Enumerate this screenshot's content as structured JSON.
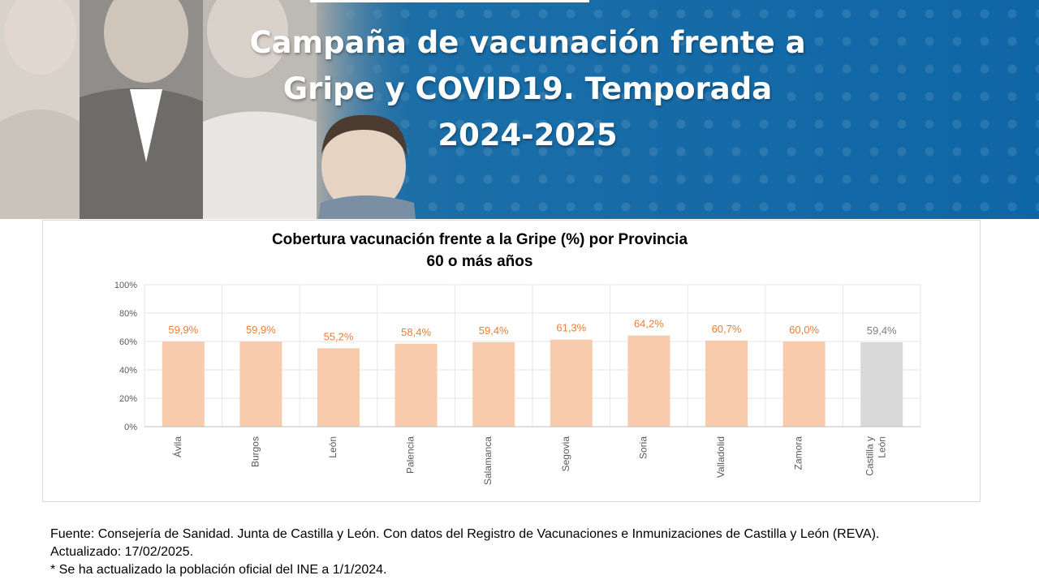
{
  "banner": {
    "title_line1": "Campaña de vacunación frente a",
    "title_line2": "Gripe y COVID19. Temporada",
    "title_line3": "2024-2025"
  },
  "chart_data": {
    "type": "bar",
    "title_line1": "Cobertura vacunación frente a la Gripe (%) por Provincia",
    "title_line2": "60 o más años",
    "categories": [
      "Ávila",
      "Burgos",
      "León",
      "Palencia",
      "Salamanca",
      "Segovia",
      "Soria",
      "Valladolid",
      "Zamora",
      "Castilla y León"
    ],
    "category_lines": [
      [
        "Ávila"
      ],
      [
        "Burgos"
      ],
      [
        "León"
      ],
      [
        "Palencia"
      ],
      [
        "Salamanca"
      ],
      [
        "Segovia"
      ],
      [
        "Soria"
      ],
      [
        "Valladolid"
      ],
      [
        "Zamora"
      ],
      [
        "Castilla y",
        "León"
      ]
    ],
    "values": [
      59.9,
      59.9,
      55.2,
      58.4,
      59.4,
      61.3,
      64.2,
      60.7,
      60.0,
      59.4
    ],
    "value_labels": [
      "59,9%",
      "59,9%",
      "55,2%",
      "58,4%",
      "59,4%",
      "61,3%",
      "64,2%",
      "60,7%",
      "60,0%",
      "59,4%"
    ],
    "yticks": [
      "0%",
      "20%",
      "40%",
      "60%",
      "80%",
      "100%"
    ],
    "ylim": [
      0,
      100
    ],
    "grid": true,
    "colors": {
      "province_bar": "#f8cbad",
      "province_label": "#ed7d31",
      "total_bar": "#d9d9d9",
      "total_label": "#7f7f7f"
    }
  },
  "footer": {
    "source": "Fuente: Consejería de Sanidad. Junta de Castilla y León. Con datos del Registro de Vacunaciones e Inmunizaciones  de Castilla y León (REVA).",
    "updated": "Actualizado: 17/02/2025.",
    "note": "* Se ha actualizado la población oficial del INE a 1/1/2024."
  }
}
